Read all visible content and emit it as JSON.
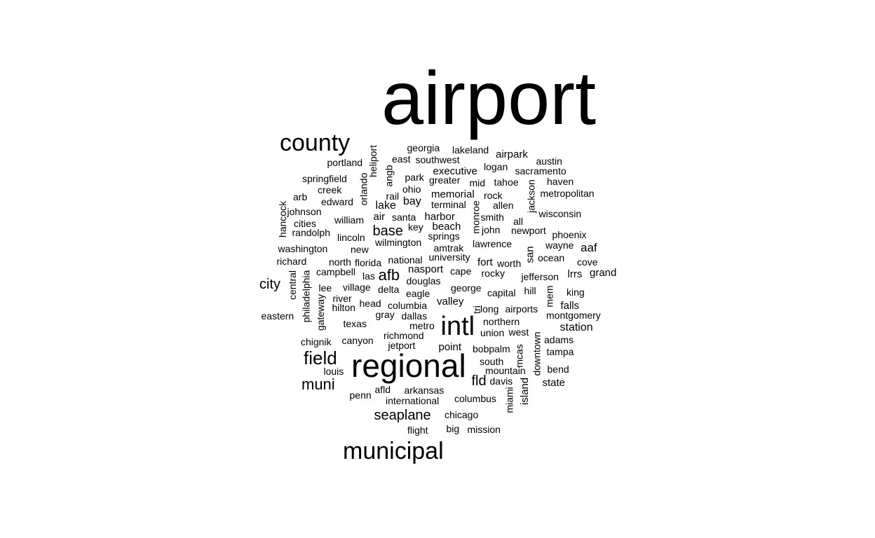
{
  "canvas": {
    "background": "#ffffff",
    "text_color": "#000000"
  },
  "words": [
    "airport",
    "county",
    "regional",
    "intl",
    "municipal",
    "field",
    "muni",
    "afb",
    "base",
    "seaplane",
    "city",
    "fld",
    "lake",
    "bay",
    "air",
    "nasport",
    "memorial",
    "executive",
    "harbor",
    "beach",
    "point",
    "valley",
    "station",
    "aaf",
    "grand",
    "lrrs",
    "falls",
    "state",
    "airpark",
    "fort",
    "new",
    "georgia",
    "lakeland",
    "portland",
    "east",
    "southwest",
    "austin",
    "logan",
    "sacramento",
    "springfield",
    "park",
    "greater",
    "mid",
    "tahoe",
    "haven",
    "creek",
    "ohio",
    "rock",
    "metropolitan",
    "arb",
    "rail",
    "edward",
    "terminal",
    "allen",
    "johnson",
    "wisconsin",
    "william",
    "santa",
    "smith",
    "all",
    "cities",
    "key",
    "john",
    "newport",
    "randolph",
    "lincoln",
    "springs",
    "phoenix",
    "washington",
    "wilmington",
    "lawrence",
    "wayne",
    "amtrak",
    "university",
    "ocean",
    "richard",
    "north",
    "florida",
    "national",
    "worth",
    "cove",
    "campbell",
    "las",
    "cape",
    "rocky",
    "jefferson",
    "douglas",
    "lee",
    "village",
    "delta",
    "eagle",
    "george",
    "capital",
    "hill",
    "king",
    "river",
    "head",
    "hilton",
    "columbia",
    "airports",
    "eastern",
    "gray",
    "dallas",
    "long",
    "montgomery",
    "northern",
    "texas",
    "metro",
    "union",
    "west",
    "chignik",
    "canyon",
    "richmond",
    "adams",
    "jetport",
    "bobpalm",
    "tampa",
    "louis",
    "south",
    "mountain",
    "bend",
    "davis",
    "penn",
    "afld",
    "arkansas",
    "international",
    "columbus",
    "chicago",
    "flight",
    "big",
    "mission",
    "heliport",
    "angb",
    "orlando",
    "hancock",
    "monroe",
    "jackson",
    "san",
    "central",
    "philadelphia",
    "gateway",
    "tri",
    "mem",
    "miami",
    "mcas",
    "downtown",
    "island"
  ]
}
